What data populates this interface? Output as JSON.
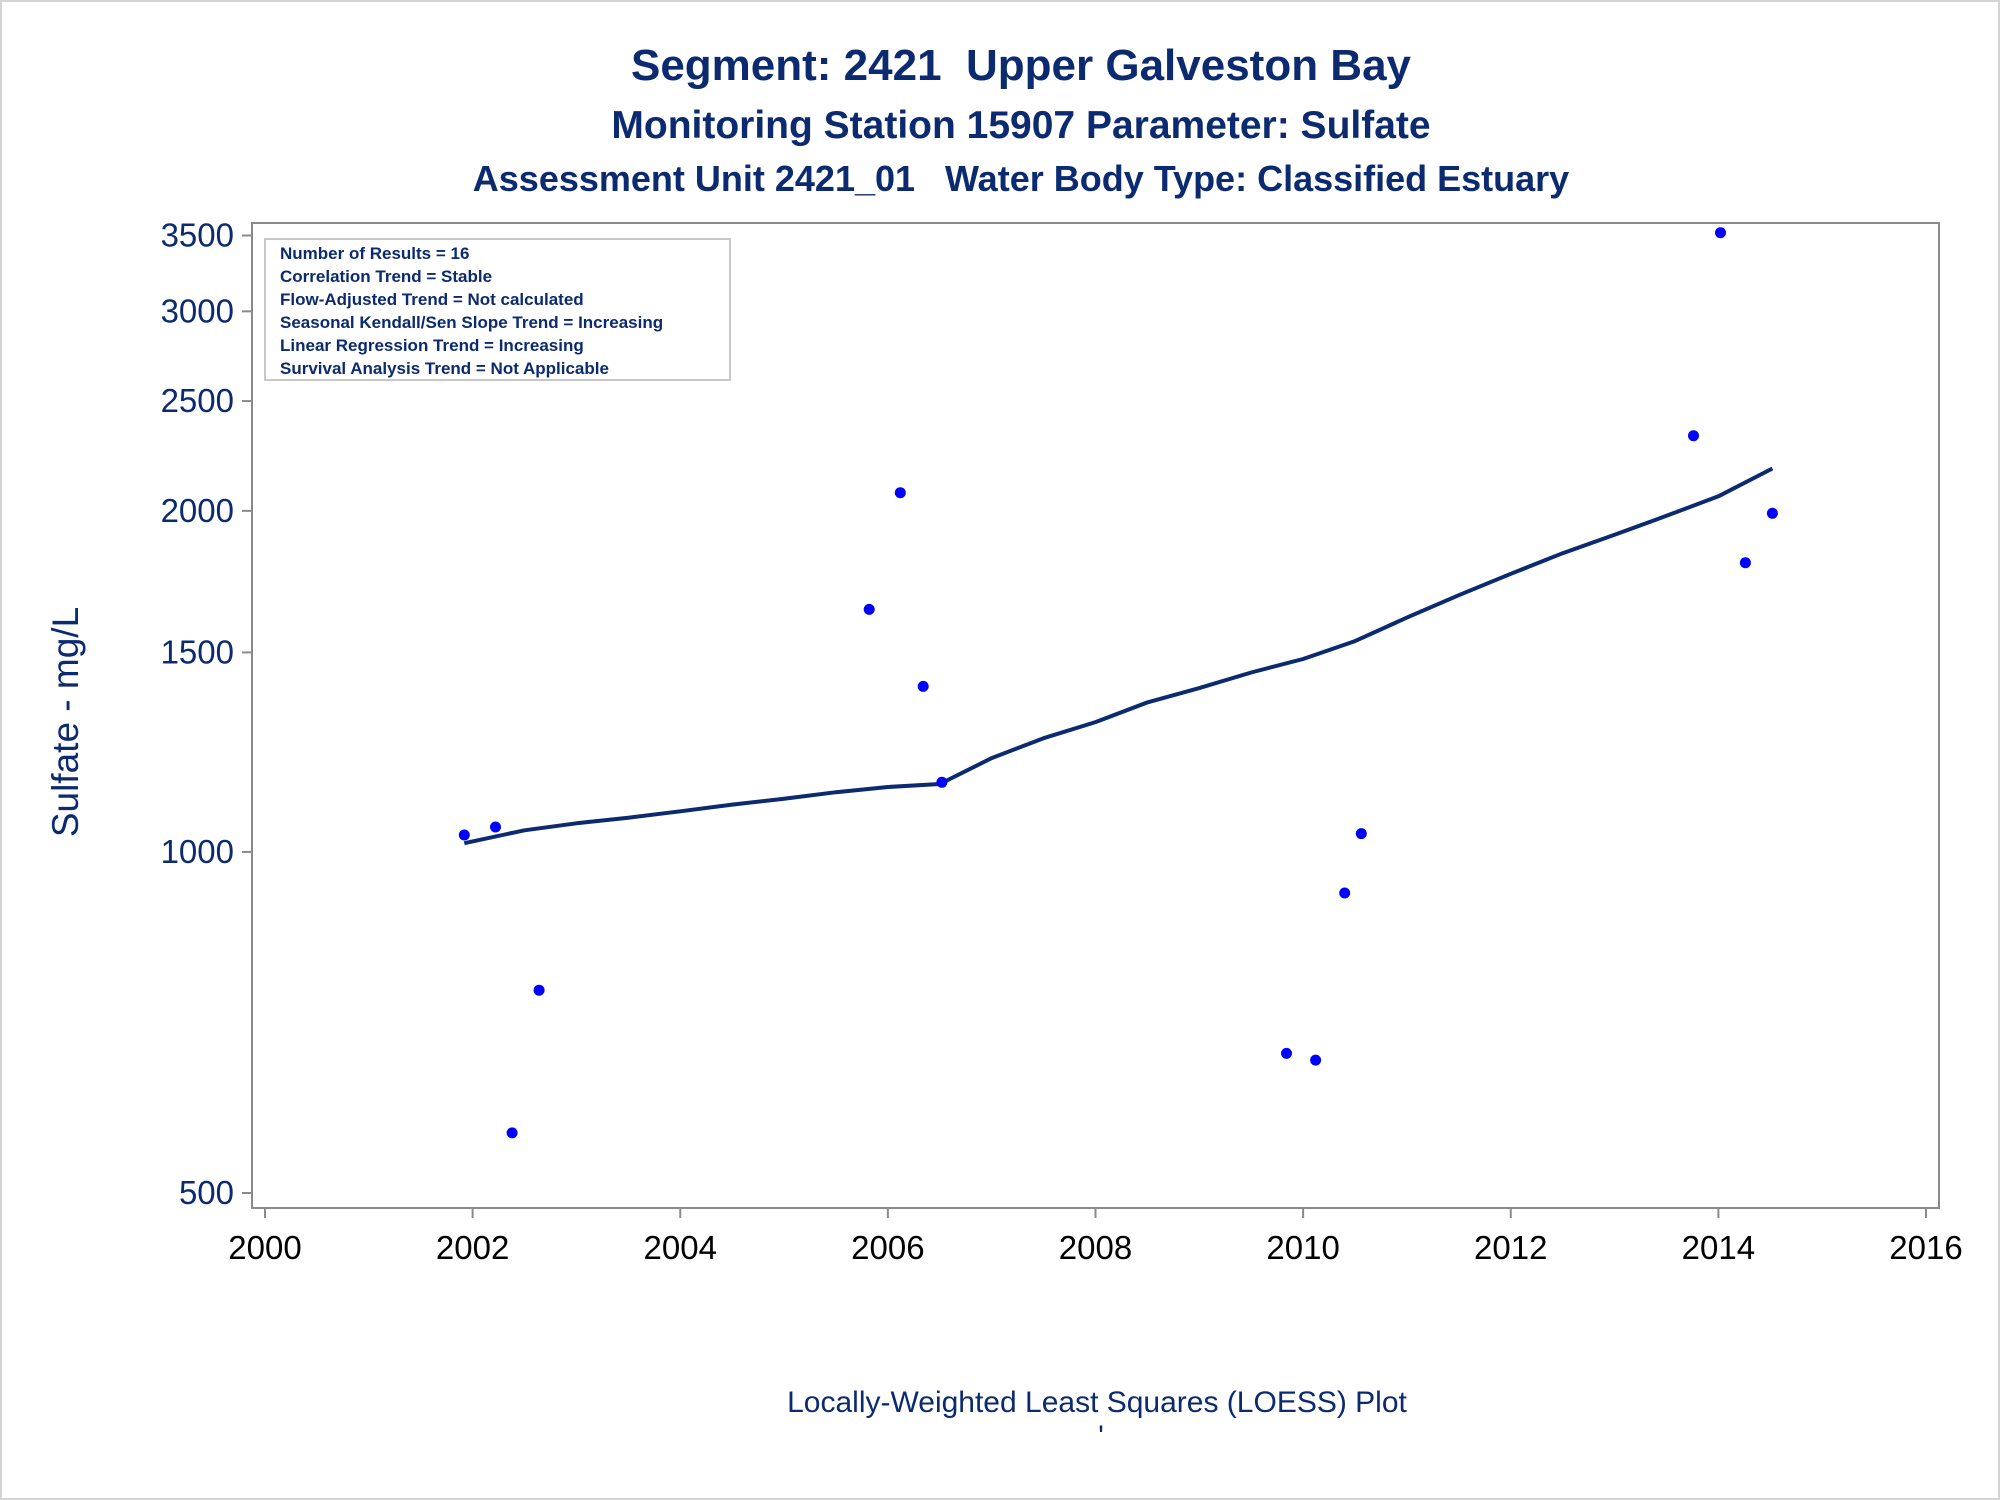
{
  "chart_data": {
    "type": "scatter",
    "title": "Segment: 2421  Upper Galveston Bay",
    "subtitle": "Monitoring Station 15907 Parameter: Sulfate",
    "subtitle2": "Assessment Unit 2421_01   Water Body Type: Classified Estuary",
    "ylabel": "Sulfate - mg/L",
    "xlabel": "",
    "footnote": "Locally-Weighted Least Squares (LOESS) Plot",
    "footnote_mark": "'",
    "y_scale": "log",
    "xlim": [
      2000,
      2016
    ],
    "ylim": [
      485,
      3590
    ],
    "x_ticks": [
      2000,
      2002,
      2004,
      2006,
      2008,
      2010,
      2012,
      2014,
      2016
    ],
    "y_ticks": [
      500,
      1000,
      1500,
      2000,
      2500,
      3000,
      3500
    ],
    "grid": false,
    "marker_color": "#0000ff",
    "line_color": "#0b2a6f",
    "text_color": "#0b2a6f",
    "inset_box": {
      "placement": "top-left",
      "lines": [
        "Number of Results = 16",
        "Correlation Trend = Stable",
        "Flow-Adjusted Trend = Not calculated",
        "Seasonal Kendall/Sen Slope Trend = Increasing",
        "Linear Regression Trend = Increasing",
        "Survival Analysis Trend = Not Applicable"
      ]
    },
    "series": [
      {
        "type": "scatter",
        "x": [
          2001.92,
          2002.22,
          2002.38,
          2002.64,
          2005.82,
          2006.12,
          2006.34,
          2006.52,
          2009.84,
          2010.12,
          2010.4,
          2010.56,
          2013.76,
          2014.02,
          2014.26,
          2014.52
        ],
        "y": [
          1035,
          1052,
          565,
          755,
          1637,
          2075,
          1400,
          1152,
          664,
          655,
          920,
          1038,
          2330,
          3520,
          1800,
          1990
        ]
      },
      {
        "type": "line",
        "x": [
          2001.92,
          2002.5,
          2003,
          2003.5,
          2004,
          2004.5,
          2005,
          2005.5,
          2006,
          2006.5,
          2007,
          2007.5,
          2008,
          2008.5,
          2009,
          2009.5,
          2010,
          2010.5,
          2011,
          2011.5,
          2012,
          2012.5,
          2013,
          2013.5,
          2014,
          2014.52
        ],
        "y": [
          1018,
          1045,
          1060,
          1072,
          1086,
          1101,
          1114,
          1129,
          1141,
          1148,
          1210,
          1260,
          1302,
          1355,
          1395,
          1440,
          1480,
          1535,
          1610,
          1685,
          1760,
          1835,
          1905,
          1980,
          2060,
          2180
        ]
      }
    ]
  }
}
